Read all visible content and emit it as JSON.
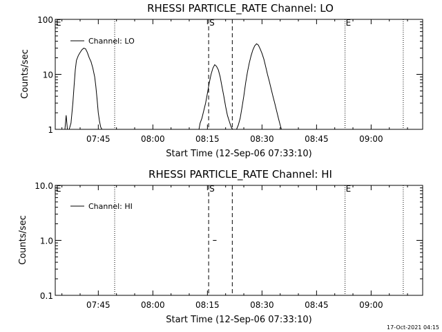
{
  "stamp": "17-Oct-2021 04:15",
  "chart_data": [
    {
      "type": "line",
      "title": "RHESSI PARTICLE_RATE Channel: LO",
      "xlabel": "Start Time (12-Sep-06 07:33:10)",
      "ylabel": "Counts/sec",
      "yscale": "log",
      "ylim": [
        1,
        100
      ],
      "xlim": [
        "07:33:10",
        "09:14:10"
      ],
      "xticks": [
        "07:45",
        "08:00",
        "08:15",
        "08:30",
        "08:45",
        "09:00"
      ],
      "yticks": [
        "1",
        "10",
        "100"
      ],
      "legend": {
        "label": "Channel: LO",
        "position": "top-left"
      },
      "markers": [
        {
          "label": "E",
          "time": "07:33:10",
          "style": "dotted"
        },
        {
          "label": "",
          "time": "07:49:30",
          "style": "dotted"
        },
        {
          "label": "S",
          "time": "08:15:20",
          "style": "dashed"
        },
        {
          "label": "",
          "time": "08:21:50",
          "style": "dashed"
        },
        {
          "label": "E",
          "time": "08:52:50",
          "style": "dotted"
        },
        {
          "label": "",
          "time": "09:08:50",
          "style": "dotted"
        }
      ],
      "series": [
        {
          "x": [
            "07:35:50",
            "07:36:10",
            "07:36:30",
            "07:37:00",
            "07:37:30",
            "07:38:00",
            "07:38:20",
            "07:38:40",
            "07:39:00",
            "07:39:30",
            "07:40:00",
            "07:40:30",
            "07:41:00",
            "07:41:30",
            "07:42:00",
            "07:42:30",
            "07:43:00",
            "07:43:30",
            "07:44:00",
            "07:44:20",
            "07:44:40",
            "07:45:00",
            "07:45:20",
            "07:45:40",
            "07:46:00"
          ],
          "y": [
            1.0,
            1.8,
            1.0,
            1.0,
            1.3,
            3,
            6,
            12,
            18,
            22,
            25,
            28,
            30,
            29,
            25,
            20,
            17,
            13,
            9,
            6,
            3.5,
            2,
            1.4,
            1.1,
            1.0
          ],
          "segment": "a"
        },
        {
          "x": [
            "08:12:40",
            "08:13:00",
            "08:13:30",
            "08:14:00",
            "08:14:30",
            "08:15:00",
            "08:15:30",
            "08:16:00",
            "08:16:30",
            "08:17:00",
            "08:17:30",
            "08:18:00",
            "08:18:30",
            "08:19:00",
            "08:19:30",
            "08:20:00",
            "08:20:30",
            "08:21:00",
            "08:21:20",
            "08:21:40",
            "08:22:00"
          ],
          "y": [
            1.0,
            1.3,
            1.6,
            2.2,
            3,
            4.5,
            7,
            10,
            13,
            15,
            14,
            12,
            9,
            6,
            4,
            2.6,
            1.8,
            1.4,
            1.2,
            1.05,
            1.0
          ],
          "segment": "b"
        },
        {
          "x": [
            "08:23:00",
            "08:23:30",
            "08:24:00",
            "08:24:30",
            "08:25:00",
            "08:25:30",
            "08:26:00",
            "08:26:30",
            "08:27:00",
            "08:27:30",
            "08:28:00",
            "08:28:30",
            "08:29:00",
            "08:29:30",
            "08:30:00",
            "08:30:30",
            "08:31:00",
            "08:31:30",
            "08:32:00",
            "08:32:30",
            "08:33:00",
            "08:33:30",
            "08:34:00",
            "08:34:30",
            "08:35:00",
            "08:35:20"
          ],
          "y": [
            1.0,
            1.2,
            1.6,
            2.5,
            4,
            7,
            11,
            16,
            22,
            28,
            33,
            36,
            34,
            29,
            24,
            19,
            14,
            10,
            7.5,
            5.5,
            4,
            3,
            2.2,
            1.6,
            1.2,
            1.0
          ],
          "segment": "c"
        }
      ]
    },
    {
      "type": "line",
      "title": "RHESSI PARTICLE_RATE Channel: HI",
      "xlabel": "Start Time (12-Sep-06 07:33:10)",
      "ylabel": "Counts/sec",
      "yscale": "log",
      "ylim": [
        0.1,
        10
      ],
      "xlim": [
        "07:33:10",
        "09:14:10"
      ],
      "xticks": [
        "07:45",
        "08:00",
        "08:15",
        "08:30",
        "08:45",
        "09:00"
      ],
      "yticks": [
        "0.1",
        "1.0",
        "10.0"
      ],
      "legend": {
        "label": "Channel: HI",
        "position": "top-left"
      },
      "markers": [
        {
          "label": "E",
          "time": "07:33:10",
          "style": "dotted"
        },
        {
          "label": "",
          "time": "07:49:30",
          "style": "dotted"
        },
        {
          "label": "S",
          "time": "08:15:20",
          "style": "dashed"
        },
        {
          "label": "",
          "time": "08:21:50",
          "style": "dashed"
        },
        {
          "label": "E",
          "time": "08:52:50",
          "style": "dotted"
        },
        {
          "label": "",
          "time": "09:08:50",
          "style": "dotted"
        }
      ],
      "series": [
        {
          "x": [
            "08:16:30",
            "08:17:30"
          ],
          "y": [
            1.0,
            1.0
          ],
          "segment": "a"
        }
      ]
    }
  ]
}
